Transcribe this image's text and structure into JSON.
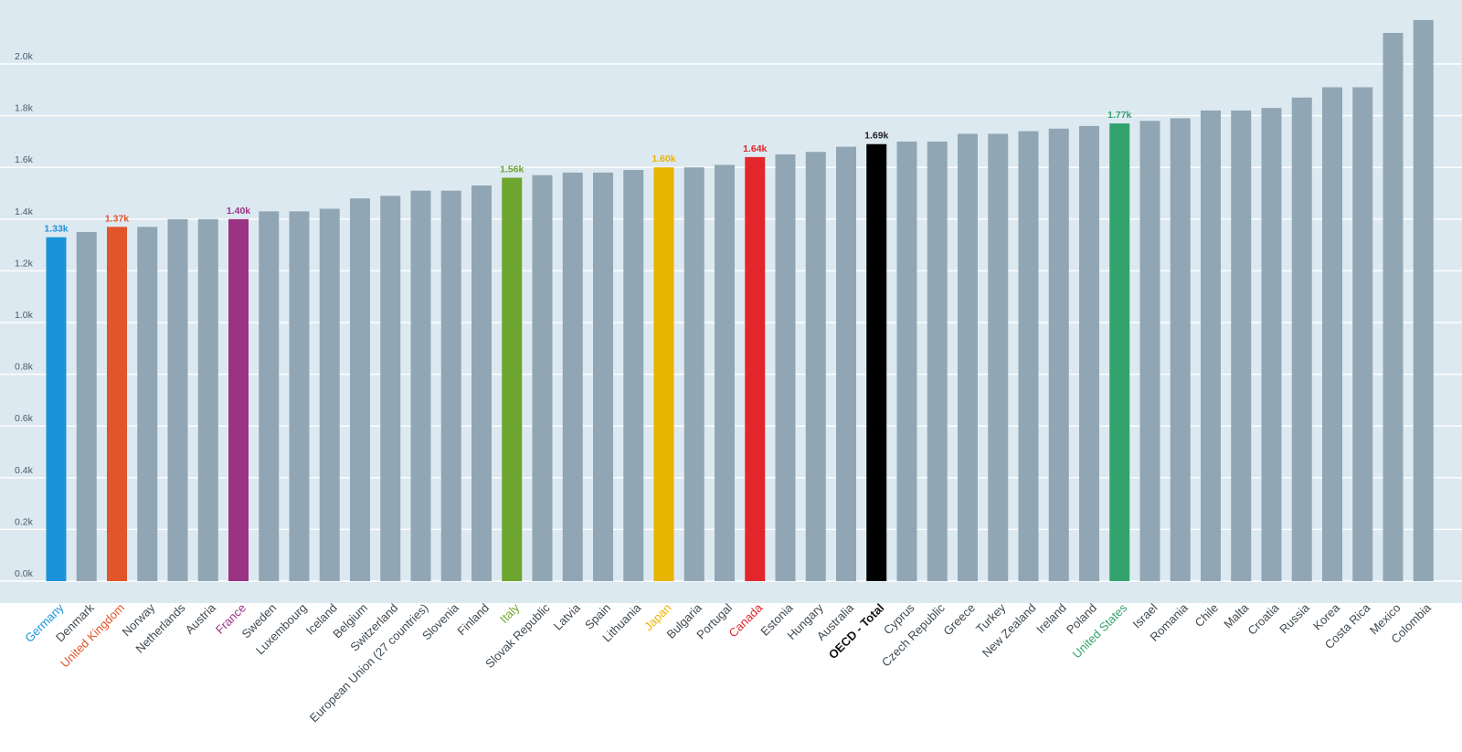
{
  "colors": {
    "plot_background": "#dde9f1",
    "default_bar": "#91a6b4",
    "gridline": "#ffffff",
    "tick_text": "#4a5a66",
    "category_text": "#3f4a52"
  },
  "chart_data": {
    "type": "bar",
    "ylim": [
      0,
      2.2
    ],
    "y_tick_values": [
      0,
      0.2,
      0.4,
      0.6,
      0.8,
      1.0,
      1.2,
      1.4,
      1.6,
      1.8,
      2.0
    ],
    "y_tick_labels": [
      "0.0k",
      "0.2k",
      "0.4k",
      "0.6k",
      "0.8k",
      "1.0k",
      "1.2k",
      "1.4k",
      "1.6k",
      "1.8k",
      "2.0k"
    ],
    "grid": true,
    "bars": [
      {
        "label": "Germany",
        "value": 1.33,
        "color": "#1a93db",
        "value_label": "1.33k"
      },
      {
        "label": "Denmark",
        "value": 1.35
      },
      {
        "label": "United Kingdom",
        "value": 1.37,
        "color": "#e0552a",
        "value_label": "1.37k"
      },
      {
        "label": "Norway",
        "value": 1.37
      },
      {
        "label": "Netherlands",
        "value": 1.4
      },
      {
        "label": "Austria",
        "value": 1.4
      },
      {
        "label": "France",
        "value": 1.4,
        "color": "#9b3385",
        "value_label": "1.40k"
      },
      {
        "label": "Sweden",
        "value": 1.43
      },
      {
        "label": "Luxembourg",
        "value": 1.43
      },
      {
        "label": "Iceland",
        "value": 1.44
      },
      {
        "label": "Belgium",
        "value": 1.48
      },
      {
        "label": "Switzerland",
        "value": 1.49
      },
      {
        "label": "European Union (27 countries)",
        "value": 1.51
      },
      {
        "label": "Slovenia",
        "value": 1.51
      },
      {
        "label": "Finland",
        "value": 1.53
      },
      {
        "label": "Italy",
        "value": 1.56,
        "color": "#6ea52f",
        "value_label": "1.56k"
      },
      {
        "label": "Slovak Republic",
        "value": 1.57
      },
      {
        "label": "Latvia",
        "value": 1.58
      },
      {
        "label": "Spain",
        "value": 1.58
      },
      {
        "label": "Lithuania",
        "value": 1.59
      },
      {
        "label": "Japan",
        "value": 1.6,
        "color": "#e9b400",
        "value_label": "1.60k"
      },
      {
        "label": "Bulgaria",
        "value": 1.6
      },
      {
        "label": "Portugal",
        "value": 1.61
      },
      {
        "label": "Canada",
        "value": 1.64,
        "color": "#e3262c",
        "value_label": "1.64k"
      },
      {
        "label": "Estonia",
        "value": 1.65
      },
      {
        "label": "Hungary",
        "value": 1.66
      },
      {
        "label": "Australia",
        "value": 1.68
      },
      {
        "label": "OECD - Total",
        "value": 1.69,
        "color": "#000000",
        "value_label": "1.69k",
        "bold": true
      },
      {
        "label": "Cyprus",
        "value": 1.7
      },
      {
        "label": "Czech Republic",
        "value": 1.7
      },
      {
        "label": "Greece",
        "value": 1.73
      },
      {
        "label": "Turkey",
        "value": 1.73
      },
      {
        "label": "New Zealand",
        "value": 1.74
      },
      {
        "label": "Ireland",
        "value": 1.75
      },
      {
        "label": "Poland",
        "value": 1.76
      },
      {
        "label": "United States",
        "value": 1.77,
        "color": "#33a36e",
        "value_label": "1.77k"
      },
      {
        "label": "Israel",
        "value": 1.78
      },
      {
        "label": "Romania",
        "value": 1.79
      },
      {
        "label": "Chile",
        "value": 1.82
      },
      {
        "label": "Malta",
        "value": 1.82
      },
      {
        "label": "Croatia",
        "value": 1.83
      },
      {
        "label": "Russia",
        "value": 1.87
      },
      {
        "label": "Korea",
        "value": 1.91
      },
      {
        "label": "Costa Rica",
        "value": 1.91
      },
      {
        "label": "Mexico",
        "value": 2.12
      },
      {
        "label": "Colombia",
        "value": 2.17
      }
    ]
  }
}
